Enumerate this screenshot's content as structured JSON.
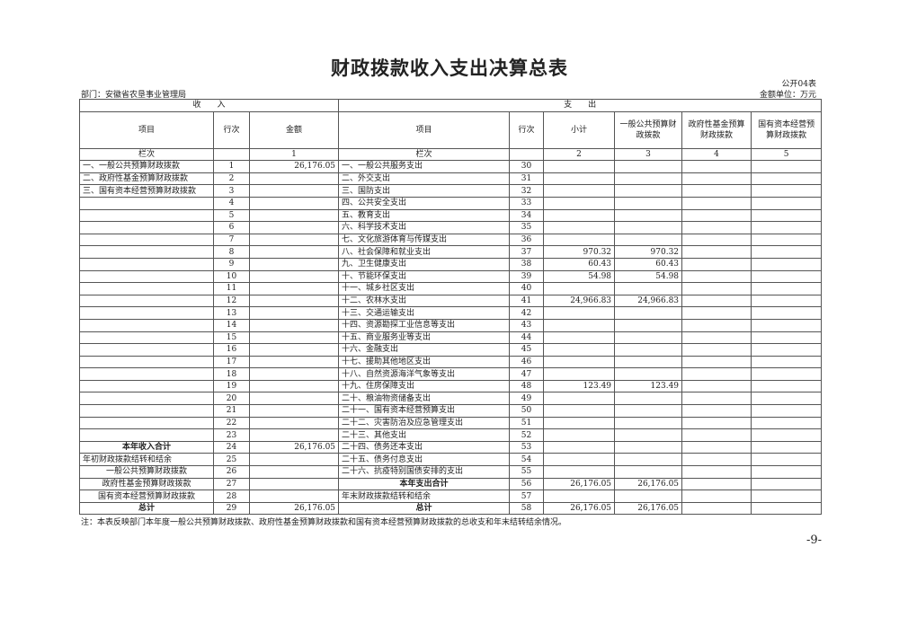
{
  "title": "财政拨款收入支出决算总表",
  "form_no": "公开04表",
  "department": "部门：安徽省农垦事业管理局",
  "unit": "金额单位：万元",
  "group_headers": {
    "income": "收　　入",
    "expense": "支　　出"
  },
  "headers": [
    "项目",
    "行次",
    "金额",
    "项目",
    "行次",
    "小计",
    "一般公共预算财政拨款",
    "政府性基金预算财政拨款",
    "国有资本经营预算财政拨款"
  ],
  "index_row": [
    "栏次",
    "",
    "1",
    "栏次",
    "",
    "2",
    "3",
    "4",
    "5"
  ],
  "rows": [
    [
      "一、一般公共预算财政拨款",
      "1",
      "26,176.05",
      "一、一般公共服务支出",
      "30",
      "",
      "",
      "",
      ""
    ],
    [
      "二、政府性基金预算财政拨款",
      "2",
      "",
      "二、外交支出",
      "31",
      "",
      "",
      "",
      ""
    ],
    [
      "三、国有资本经营预算财政拨款",
      "3",
      "",
      "三、国防支出",
      "32",
      "",
      "",
      "",
      ""
    ],
    [
      "",
      "4",
      "",
      "四、公共安全支出",
      "33",
      "",
      "",
      "",
      ""
    ],
    [
      "",
      "5",
      "",
      "五、教育支出",
      "34",
      "",
      "",
      "",
      ""
    ],
    [
      "",
      "6",
      "",
      "六、科学技术支出",
      "35",
      "",
      "",
      "",
      ""
    ],
    [
      "",
      "7",
      "",
      "七、文化旅游体育与传媒支出",
      "36",
      "",
      "",
      "",
      ""
    ],
    [
      "",
      "8",
      "",
      "八、社会保障和就业支出",
      "37",
      "970.32",
      "970.32",
      "",
      ""
    ],
    [
      "",
      "9",
      "",
      "九、卫生健康支出",
      "38",
      "60.43",
      "60.43",
      "",
      ""
    ],
    [
      "",
      "10",
      "",
      "十、节能环保支出",
      "39",
      "54.98",
      "54.98",
      "",
      ""
    ],
    [
      "",
      "11",
      "",
      "十一、城乡社区支出",
      "40",
      "",
      "",
      "",
      ""
    ],
    [
      "",
      "12",
      "",
      "十二、农林水支出",
      "41",
      "24,966.83",
      "24,966.83",
      "",
      ""
    ],
    [
      "",
      "13",
      "",
      "十三、交通运输支出",
      "42",
      "",
      "",
      "",
      ""
    ],
    [
      "",
      "14",
      "",
      "十四、资源勘探工业信息等支出",
      "43",
      "",
      "",
      "",
      ""
    ],
    [
      "",
      "15",
      "",
      "十五、商业服务业等支出",
      "44",
      "",
      "",
      "",
      ""
    ],
    [
      "",
      "16",
      "",
      "十六、金融支出",
      "45",
      "",
      "",
      "",
      ""
    ],
    [
      "",
      "17",
      "",
      "十七、援助其他地区支出",
      "46",
      "",
      "",
      "",
      ""
    ],
    [
      "",
      "18",
      "",
      "十八、自然资源海洋气象等支出",
      "47",
      "",
      "",
      "",
      ""
    ],
    [
      "",
      "19",
      "",
      "十九、住房保障支出",
      "48",
      "123.49",
      "123.49",
      "",
      ""
    ],
    [
      "",
      "20",
      "",
      "二十、粮油物资储备支出",
      "49",
      "",
      "",
      "",
      ""
    ],
    [
      "",
      "21",
      "",
      "二十一、国有资本经营预算支出",
      "50",
      "",
      "",
      "",
      ""
    ],
    [
      "",
      "22",
      "",
      "二十二、灾害防治及应急管理支出",
      "51",
      "",
      "",
      "",
      ""
    ],
    [
      "",
      "23",
      "",
      "二十三、其他支出",
      "52",
      "",
      "",
      "",
      ""
    ],
    [
      "本年收入合计",
      "24",
      "26,176.05",
      "二十四、债务还本支出",
      "53",
      "",
      "",
      "",
      ""
    ],
    [
      "年初财政拨款结转和结余",
      "25",
      "",
      "二十五、债务付息支出",
      "54",
      "",
      "",
      "",
      ""
    ],
    [
      "一般公共预算财政拨款",
      "26",
      "",
      "二十六、抗疫特别国债安排的支出",
      "55",
      "",
      "",
      "",
      ""
    ],
    [
      "政府性基金预算财政拨款",
      "27",
      "",
      "本年支出合计",
      "56",
      "26,176.05",
      "26,176.05",
      "",
      ""
    ],
    [
      "国有资本经营预算财政拨款",
      "28",
      "",
      "年末财政拨款结转和结余",
      "57",
      "",
      "",
      "",
      ""
    ],
    [
      "总计",
      "29",
      "26,176.05",
      "总计",
      "58",
      "26,176.05",
      "26,176.05",
      "",
      ""
    ]
  ],
  "note": "注：本表反映部门本年度一般公共预算财政拨款、政府性基金预算财政拨款和国有资本经营预算财政拨款的总收支和年末结转结余情况。",
  "page_number": "-9-"
}
